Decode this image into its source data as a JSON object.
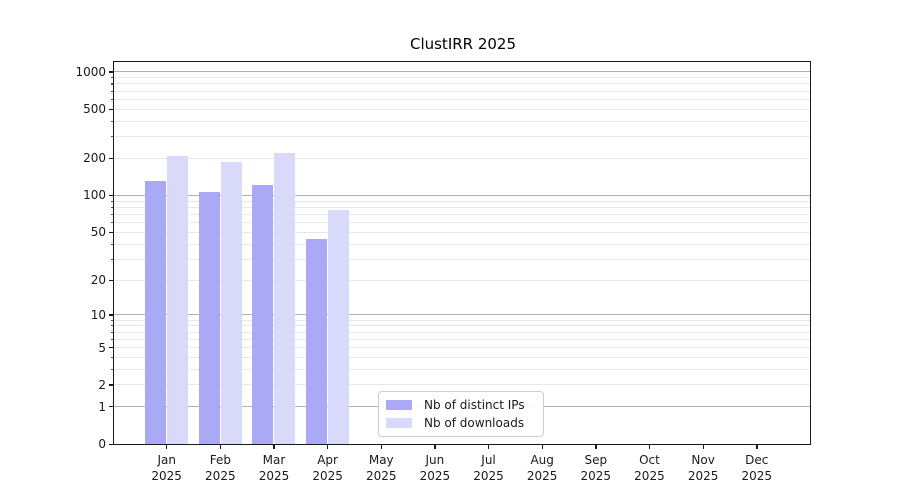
{
  "title": "ClustIRR 2025",
  "legend": {
    "items": [
      {
        "label": "Nb of distinct IPs",
        "color": "#a9a9f6"
      },
      {
        "label": "Nb of downloads",
        "color": "#d9d9f9"
      }
    ]
  },
  "chart_data": {
    "type": "bar",
    "title": "ClustIRR 2025",
    "categories": [
      "Jan",
      "Feb",
      "Mar",
      "Apr",
      "May",
      "Jun",
      "Jul",
      "Aug",
      "Sep",
      "Oct",
      "Nov",
      "Dec"
    ],
    "year": "2025",
    "series": [
      {
        "name": "Nb of distinct IPs",
        "color": "#a9a9f6",
        "values": [
          132,
          106,
          121,
          44,
          null,
          null,
          null,
          null,
          null,
          null,
          null,
          null
        ]
      },
      {
        "name": "Nb of downloads",
        "color": "#d9d9f9",
        "values": [
          210,
          186,
          220,
          76,
          null,
          null,
          null,
          null,
          null,
          null,
          null,
          null
        ]
      }
    ],
    "xlabel": "",
    "ylabel": "",
    "yscale": "symlog (log10(1+v))",
    "yticks": [
      0,
      1,
      2,
      5,
      10,
      20,
      50,
      100,
      200,
      500,
      1000
    ],
    "ytick_labels": [
      "0",
      "1",
      "2",
      "5",
      "10",
      "20",
      "50",
      "100",
      "200",
      "500",
      "1000"
    ],
    "ylim": [
      0,
      1200
    ],
    "grid": "both",
    "legend_position": "lower center-left inside plot"
  },
  "colors": {
    "bar_distinct_ips": "#a9a9f6",
    "bar_downloads": "#d9d9f9",
    "grid_decade": "#b0b0b0",
    "grid_minor": "#e8e8e8",
    "axis": "#1a1a1a",
    "background": "#ffffff"
  }
}
